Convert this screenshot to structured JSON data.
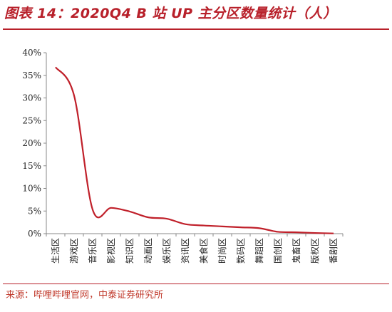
{
  "figure": {
    "title": "图表 14：2020Q4 B 站 UP 主分区数量统计（人）",
    "source": "来源：哔哩哔哩官网，中泰证券研究所"
  },
  "chart_data": {
    "type": "line",
    "title": "",
    "xlabel": "",
    "ylabel": "",
    "ylim": [
      0,
      40
    ],
    "y_ticks": [
      "0%",
      "5%",
      "10%",
      "15%",
      "20%",
      "25%",
      "30%",
      "35%",
      "40%"
    ],
    "y_tick_values": [
      0,
      5,
      10,
      15,
      20,
      25,
      30,
      35,
      40
    ],
    "categories": [
      "生活区",
      "游戏区",
      "音乐区",
      "影视区",
      "知识区",
      "动画区",
      "娱乐区",
      "资讯区",
      "美食区",
      "时尚区",
      "数码区",
      "舞蹈区",
      "国创区",
      "鬼畜区",
      "版权区",
      "番剧区"
    ],
    "series": [
      {
        "values": [
          36.8,
          30.5,
          5.3,
          5.7,
          4.9,
          3.6,
          3.3,
          2.1,
          1.8,
          1.6,
          1.4,
          1.2,
          0.4,
          0.3,
          0.15,
          0.05
        ],
        "color": "#c0202a"
      }
    ],
    "grid": false,
    "legend": "none"
  }
}
